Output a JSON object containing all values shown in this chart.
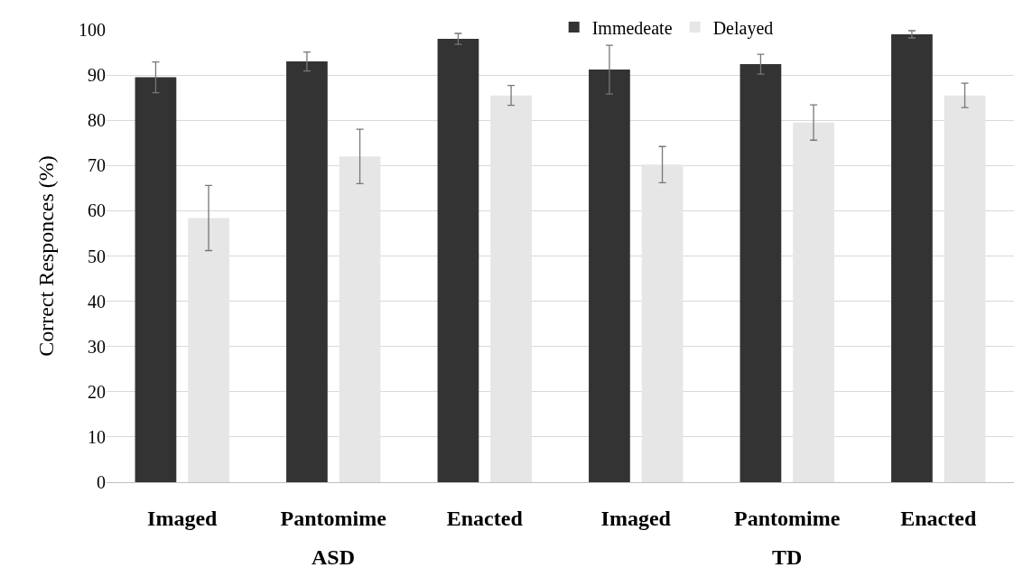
{
  "chart_data": {
    "type": "bar",
    "ylabel": "Correct Responces (%)",
    "categories": [
      "Imaged",
      "Pantomime",
      "Enacted",
      "Imaged",
      "Pantomime",
      "Enacted"
    ],
    "series": [
      {
        "name": "Immedeate",
        "color": "#333333",
        "values": [
          89.5,
          93.0,
          98.0,
          91.2,
          92.4,
          99.0
        ],
        "errors": [
          3.4,
          2.1,
          1.2,
          5.4,
          2.2,
          0.8
        ]
      },
      {
        "name": "Delayed",
        "color": "#e6e6e6",
        "values": [
          58.4,
          72.0,
          85.5,
          70.2,
          79.5,
          85.5
        ],
        "errors": [
          7.2,
          6.0,
          2.2,
          4.0,
          3.9,
          2.7
        ]
      }
    ],
    "annotations": [
      "ASD",
      "TD"
    ],
    "ylim": [
      0,
      100
    ],
    "yticks": [
      0,
      10,
      20,
      30,
      40,
      50,
      60,
      70,
      80,
      90,
      100
    ],
    "grid": "y",
    "legend": "top right"
  }
}
